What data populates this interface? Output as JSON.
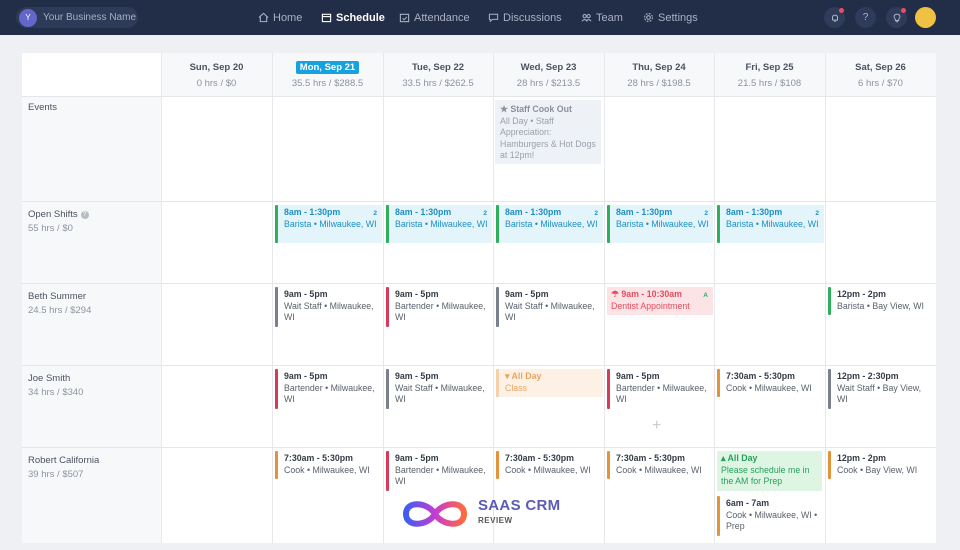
{
  "business": {
    "avatar_letter": "Y",
    "name": "Your Business Name"
  },
  "nav": [
    {
      "label": "Home",
      "icon": "home-icon"
    },
    {
      "label": "Schedule",
      "icon": "calendar-icon",
      "active": true
    },
    {
      "label": "Attendance",
      "icon": "check-calendar-icon"
    },
    {
      "label": "Discussions",
      "icon": "chat-icon"
    },
    {
      "label": "Team",
      "icon": "team-icon"
    },
    {
      "label": "Settings",
      "icon": "gear-icon"
    }
  ],
  "topbar_icons": [
    "bell-icon",
    "help-icon",
    "lightbulb-icon",
    "user-avatar"
  ],
  "days": [
    {
      "label": "Sun, Sep 20",
      "totals": "0 hrs / $0"
    },
    {
      "label": "Mon, Sep 21",
      "totals": "35.5 hrs / $288.5",
      "today": true
    },
    {
      "label": "Tue, Sep 22",
      "totals": "33.5 hrs / $262.5"
    },
    {
      "label": "Wed, Sep 23",
      "totals": "28 hrs / $213.5"
    },
    {
      "label": "Thu, Sep 24",
      "totals": "28 hrs / $198.5"
    },
    {
      "label": "Fri, Sep 25",
      "totals": "21.5 hrs / $108"
    },
    {
      "label": "Sat, Sep 26",
      "totals": "6 hrs / $70"
    }
  ],
  "rows": [
    {
      "name": "Events",
      "sub": ""
    },
    {
      "name": "Open Shifts",
      "sub": "55 hrs / $0",
      "info_icon": true
    },
    {
      "name": "Beth Summer",
      "sub": "24.5 hrs / $294"
    },
    {
      "name": "Joe Smith",
      "sub": "34 hrs / $340"
    },
    {
      "name": "Robert California",
      "sub": "39 hrs / $507"
    }
  ],
  "event": {
    "title": "Staff Cook Out",
    "body": "All Day • Staff Appreciation: Hamburgers & Hot Dogs at 12pm!"
  },
  "open_shift": {
    "time": "8am - 1:30pm",
    "detail": "Barista • Milwaukee, WI",
    "count": "2"
  },
  "beth": {
    "mon": {
      "time": "9am - 5pm",
      "detail": "Wait Staff • Milwaukee, WI"
    },
    "tue": {
      "time": "9am - 5pm",
      "detail": "Bartender • Milwaukee, WI"
    },
    "wed": {
      "time": "9am - 5pm",
      "detail": "Wait Staff • Milwaukee, WI"
    },
    "thu": {
      "time": "9am - 10:30am",
      "detail": "Dentist Appointment",
      "badge": "A"
    },
    "sat": {
      "time": "12pm - 2pm",
      "detail": "Barista • Bay View, WI"
    }
  },
  "joe": {
    "mon": {
      "time": "9am - 5pm",
      "detail": "Bartender • Milwaukee, WI"
    },
    "tue": {
      "time": "9am - 5pm",
      "detail": "Wait Staff • Milwaukee, WI"
    },
    "wed": {
      "time": "All Day",
      "detail": "Class"
    },
    "thu": {
      "time": "9am - 5pm",
      "detail": "Bartender • Milwaukee, WI"
    },
    "fri": {
      "time": "7:30am - 5:30pm",
      "detail": "Cook • Milwaukee, WI"
    },
    "sat": {
      "time": "12pm - 2:30pm",
      "detail": "Wait Staff • Bay View, WI"
    }
  },
  "robert": {
    "mon": {
      "time": "7:30am - 5:30pm",
      "detail": "Cook • Milwaukee, WI"
    },
    "tue": {
      "time": "9am - 5pm",
      "detail": "Bartender • Milwaukee, WI"
    },
    "wed": {
      "time": "7:30am - 5:30pm",
      "detail": "Cook • Milwaukee, WI"
    },
    "thu": {
      "time": "7:30am - 5:30pm",
      "detail": "Cook • Milwaukee, WI"
    },
    "fri_avail": {
      "time": "All Day",
      "detail": "Please schedule me in the AM for Prep"
    },
    "fri": {
      "time": "6am - 7am",
      "detail": "Cook • Milwaukee, WI • Prep"
    },
    "sat": {
      "time": "12pm - 2pm",
      "detail": "Cook • Bay View, WI"
    }
  },
  "colors": {
    "topbar": "#222d47",
    "today": "#17a2df",
    "open_shift": "#1d8fc2",
    "green_bar": "#2fae5c",
    "gray_bar": "#7a818c",
    "red_bar": "#d63c5a",
    "orange_bar": "#e3933a"
  },
  "watermark": {
    "line1": "SAAS CRM",
    "line2": "REVIEW"
  }
}
